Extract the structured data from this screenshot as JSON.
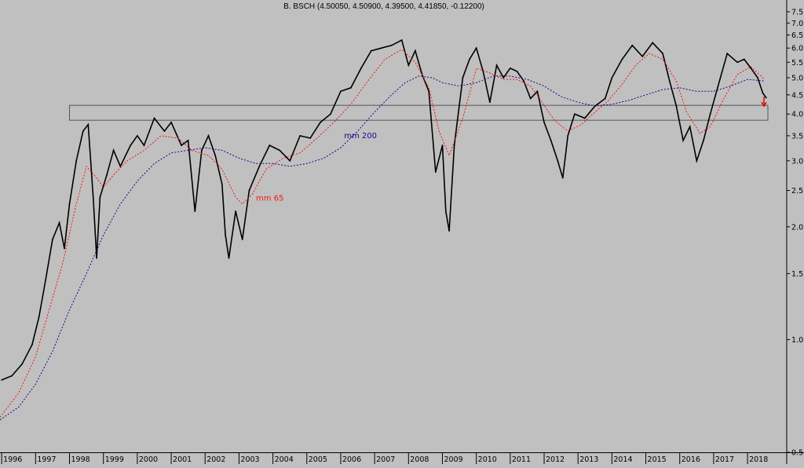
{
  "chart_data": {
    "type": "line",
    "title": "B. BSCH (4.50050, 4.50900, 4.39500, 4.41850, -0.12200)",
    "y_scale": "log",
    "y_range": [
      0.5,
      7.5
    ],
    "y_ticks": [
      7.5,
      7.0,
      6.5,
      6.0,
      5.5,
      5.0,
      4.5,
      4.0,
      3.5,
      3.0,
      2.5,
      2.0,
      1.5,
      1.0,
      0.5
    ],
    "x_range": [
      1995.95,
      2018.6
    ],
    "x_ticks": [
      "1996",
      "1997",
      "1998",
      "1999",
      "2000",
      "2001",
      "2002",
      "2003",
      "2004",
      "2005",
      "2006",
      "2007",
      "2008",
      "2009",
      "2010",
      "2011",
      "2012",
      "2013",
      "2014",
      "2015",
      "2016",
      "2017",
      "2018"
    ],
    "grid": false,
    "series": [
      {
        "name": "",
        "color": "#000000",
        "points": [
          [
            1996.0,
            0.78
          ],
          [
            1996.3,
            0.8
          ],
          [
            1996.6,
            0.86
          ],
          [
            1996.9,
            0.97
          ],
          [
            1997.1,
            1.15
          ],
          [
            1997.3,
            1.45
          ],
          [
            1997.5,
            1.85
          ],
          [
            1997.7,
            2.05
          ],
          [
            1997.85,
            1.75
          ],
          [
            1998.0,
            2.3
          ],
          [
            1998.2,
            3.0
          ],
          [
            1998.4,
            3.6
          ],
          [
            1998.55,
            3.75
          ],
          [
            1998.7,
            2.4
          ],
          [
            1998.8,
            1.65
          ],
          [
            1998.9,
            2.4
          ],
          [
            1999.1,
            2.75
          ],
          [
            1999.3,
            3.2
          ],
          [
            1999.5,
            2.9
          ],
          [
            1999.8,
            3.3
          ],
          [
            2000.0,
            3.5
          ],
          [
            2000.2,
            3.3
          ],
          [
            2000.5,
            3.9
          ],
          [
            2000.8,
            3.6
          ],
          [
            2001.0,
            3.8
          ],
          [
            2001.3,
            3.3
          ],
          [
            2001.5,
            3.4
          ],
          [
            2001.7,
            2.2
          ],
          [
            2001.9,
            3.2
          ],
          [
            2002.1,
            3.5
          ],
          [
            2002.3,
            3.1
          ],
          [
            2002.5,
            2.6
          ],
          [
            2002.6,
            1.9
          ],
          [
            2002.7,
            1.65
          ],
          [
            2002.9,
            2.2
          ],
          [
            2003.1,
            1.85
          ],
          [
            2003.3,
            2.5
          ],
          [
            2003.6,
            2.9
          ],
          [
            2003.9,
            3.3
          ],
          [
            2004.2,
            3.2
          ],
          [
            2004.5,
            3.0
          ],
          [
            2004.8,
            3.5
          ],
          [
            2005.1,
            3.45
          ],
          [
            2005.4,
            3.8
          ],
          [
            2005.7,
            4.0
          ],
          [
            2006.0,
            4.6
          ],
          [
            2006.3,
            4.7
          ],
          [
            2006.6,
            5.3
          ],
          [
            2006.9,
            5.9
          ],
          [
            2007.2,
            6.0
          ],
          [
            2007.5,
            6.1
          ],
          [
            2007.8,
            6.3
          ],
          [
            2008.0,
            5.4
          ],
          [
            2008.2,
            5.9
          ],
          [
            2008.4,
            5.1
          ],
          [
            2008.6,
            4.6
          ],
          [
            2008.8,
            2.8
          ],
          [
            2009.0,
            3.3
          ],
          [
            2009.1,
            2.2
          ],
          [
            2009.2,
            1.95
          ],
          [
            2009.35,
            3.3
          ],
          [
            2009.6,
            5.0
          ],
          [
            2009.8,
            5.6
          ],
          [
            2010.0,
            6.0
          ],
          [
            2010.2,
            5.2
          ],
          [
            2010.4,
            4.3
          ],
          [
            2010.6,
            5.4
          ],
          [
            2010.8,
            5.0
          ],
          [
            2011.0,
            5.3
          ],
          [
            2011.2,
            5.2
          ],
          [
            2011.4,
            4.9
          ],
          [
            2011.6,
            4.4
          ],
          [
            2011.8,
            4.6
          ],
          [
            2012.0,
            3.8
          ],
          [
            2012.2,
            3.4
          ],
          [
            2012.4,
            3.0
          ],
          [
            2012.55,
            2.7
          ],
          [
            2012.7,
            3.5
          ],
          [
            2012.9,
            4.0
          ],
          [
            2013.2,
            3.9
          ],
          [
            2013.5,
            4.2
          ],
          [
            2013.8,
            4.4
          ],
          [
            2014.0,
            5.0
          ],
          [
            2014.3,
            5.6
          ],
          [
            2014.6,
            6.1
          ],
          [
            2014.9,
            5.7
          ],
          [
            2015.2,
            6.2
          ],
          [
            2015.5,
            5.8
          ],
          [
            2015.7,
            4.9
          ],
          [
            2015.9,
            4.2
          ],
          [
            2016.1,
            3.4
          ],
          [
            2016.3,
            3.7
          ],
          [
            2016.5,
            3.0
          ],
          [
            2016.7,
            3.4
          ],
          [
            2016.9,
            4.0
          ],
          [
            2017.2,
            5.0
          ],
          [
            2017.4,
            5.8
          ],
          [
            2017.7,
            5.5
          ],
          [
            2017.9,
            5.6
          ],
          [
            2018.1,
            5.3
          ],
          [
            2018.3,
            5.0
          ],
          [
            2018.45,
            4.55
          ],
          [
            2018.55,
            4.42
          ]
        ]
      },
      {
        "name": "mm 65",
        "color": "#ff1010",
        "points": [
          [
            1995.95,
            0.62
          ],
          [
            1996.5,
            0.72
          ],
          [
            1997.0,
            0.9
          ],
          [
            1997.4,
            1.2
          ],
          [
            1997.8,
            1.6
          ],
          [
            1998.2,
            2.3
          ],
          [
            1998.5,
            2.9
          ],
          [
            1998.8,
            2.7
          ],
          [
            1999.0,
            2.55
          ],
          [
            1999.3,
            2.75
          ],
          [
            1999.7,
            3.0
          ],
          [
            2000.2,
            3.2
          ],
          [
            2000.7,
            3.5
          ],
          [
            2001.2,
            3.45
          ],
          [
            2001.6,
            3.2
          ],
          [
            2002.1,
            3.1
          ],
          [
            2002.5,
            2.85
          ],
          [
            2002.9,
            2.4
          ],
          [
            2003.1,
            2.3
          ],
          [
            2003.4,
            2.45
          ],
          [
            2003.8,
            2.85
          ],
          [
            2004.3,
            3.05
          ],
          [
            2004.8,
            3.15
          ],
          [
            2005.3,
            3.45
          ],
          [
            2005.8,
            3.8
          ],
          [
            2006.3,
            4.25
          ],
          [
            2006.8,
            4.9
          ],
          [
            2007.3,
            5.6
          ],
          [
            2007.8,
            5.95
          ],
          [
            2008.2,
            5.5
          ],
          [
            2008.6,
            4.7
          ],
          [
            2008.9,
            3.6
          ],
          [
            2009.2,
            3.1
          ],
          [
            2009.6,
            3.9
          ],
          [
            2010.0,
            5.3
          ],
          [
            2010.4,
            5.15
          ],
          [
            2010.8,
            4.95
          ],
          [
            2011.2,
            4.95
          ],
          [
            2011.6,
            4.75
          ],
          [
            2011.9,
            4.35
          ],
          [
            2012.3,
            3.85
          ],
          [
            2012.7,
            3.6
          ],
          [
            2013.1,
            3.75
          ],
          [
            2013.5,
            4.05
          ],
          [
            2013.9,
            4.35
          ],
          [
            2014.3,
            4.8
          ],
          [
            2014.7,
            5.4
          ],
          [
            2015.1,
            5.8
          ],
          [
            2015.5,
            5.6
          ],
          [
            2015.9,
            4.9
          ],
          [
            2016.2,
            4.05
          ],
          [
            2016.6,
            3.55
          ],
          [
            2016.9,
            3.7
          ],
          [
            2017.3,
            4.4
          ],
          [
            2017.7,
            5.1
          ],
          [
            2018.1,
            5.35
          ],
          [
            2018.5,
            4.95
          ]
        ]
      },
      {
        "name": "mm 200",
        "color": "#200090",
        "points": [
          [
            1995.95,
            0.61
          ],
          [
            1996.5,
            0.66
          ],
          [
            1997.0,
            0.76
          ],
          [
            1997.5,
            0.93
          ],
          [
            1998.0,
            1.2
          ],
          [
            1998.5,
            1.5
          ],
          [
            1999.0,
            1.9
          ],
          [
            1999.5,
            2.3
          ],
          [
            2000.0,
            2.65
          ],
          [
            2000.5,
            2.95
          ],
          [
            2001.0,
            3.15
          ],
          [
            2001.5,
            3.2
          ],
          [
            2002.0,
            3.25
          ],
          [
            2002.5,
            3.2
          ],
          [
            2003.0,
            3.05
          ],
          [
            2003.5,
            2.95
          ],
          [
            2004.0,
            2.95
          ],
          [
            2004.5,
            2.9
          ],
          [
            2005.0,
            2.95
          ],
          [
            2005.5,
            3.05
          ],
          [
            2006.0,
            3.25
          ],
          [
            2006.5,
            3.6
          ],
          [
            2007.0,
            4.05
          ],
          [
            2007.5,
            4.5
          ],
          [
            2007.9,
            4.85
          ],
          [
            2008.3,
            5.05
          ],
          [
            2008.7,
            5.0
          ],
          [
            2009.0,
            4.85
          ],
          [
            2009.5,
            4.75
          ],
          [
            2010.0,
            4.85
          ],
          [
            2010.5,
            5.05
          ],
          [
            2011.0,
            5.05
          ],
          [
            2011.5,
            4.95
          ],
          [
            2012.0,
            4.75
          ],
          [
            2012.5,
            4.45
          ],
          [
            2013.0,
            4.3
          ],
          [
            2013.5,
            4.2
          ],
          [
            2014.0,
            4.25
          ],
          [
            2014.5,
            4.35
          ],
          [
            2015.0,
            4.5
          ],
          [
            2015.5,
            4.65
          ],
          [
            2016.0,
            4.7
          ],
          [
            2016.5,
            4.6
          ],
          [
            2017.0,
            4.6
          ],
          [
            2017.5,
            4.75
          ],
          [
            2018.0,
            4.95
          ],
          [
            2018.5,
            4.9
          ]
        ]
      }
    ],
    "annotations": [
      {
        "text": "mm 200",
        "x": 2006.1,
        "y": 3.45,
        "color": "#200090"
      },
      {
        "text": "mm 65",
        "x": 2003.5,
        "y": 2.35,
        "color": "#ff1010"
      }
    ],
    "horizontal_band": {
      "y_low": 3.85,
      "y_high": 4.22,
      "x_start": 1998.0
    },
    "arrow_marker": {
      "x": 2018.6,
      "y": 4.2,
      "color": "#e00000"
    }
  }
}
